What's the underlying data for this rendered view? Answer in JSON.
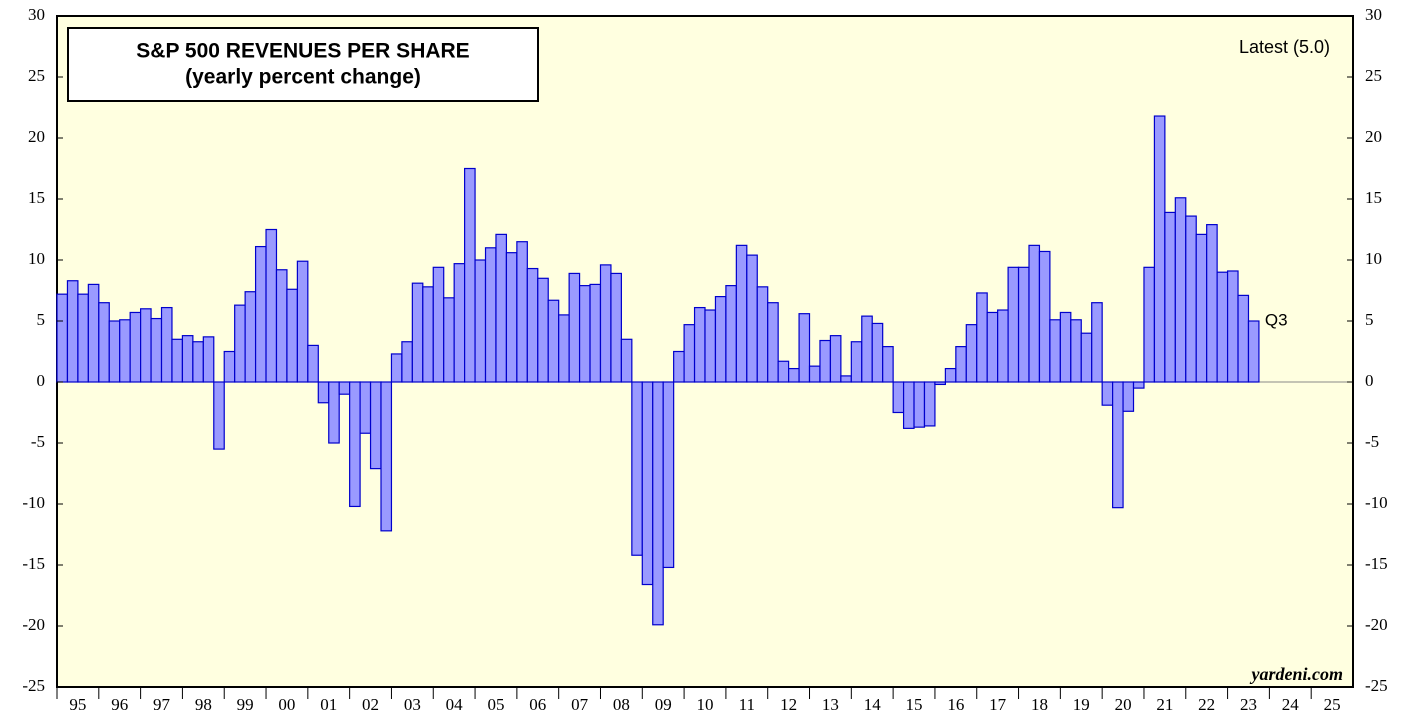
{
  "chart_data": {
    "type": "bar",
    "title": "S&P 500 REVENUES PER SHARE",
    "subtitle": "(yearly percent change)",
    "annotations": {
      "latest": "Latest (5.0)",
      "last_label": "Q3",
      "source": "yardeni.com"
    },
    "x_labels": [
      "95",
      "96",
      "97",
      "98",
      "99",
      "00",
      "01",
      "02",
      "03",
      "04",
      "05",
      "06",
      "07",
      "08",
      "09",
      "10",
      "11",
      "12",
      "13",
      "14",
      "15",
      "16",
      "17",
      "18",
      "19",
      "20",
      "21",
      "22",
      "23",
      "24",
      "25"
    ],
    "values": [
      7.2,
      8.3,
      7.2,
      8.0,
      6.5,
      5.0,
      5.1,
      5.7,
      6.0,
      5.2,
      6.1,
      3.5,
      3.8,
      3.3,
      3.7,
      -5.5,
      2.5,
      6.3,
      7.4,
      11.1,
      12.5,
      9.2,
      7.6,
      9.9,
      3.0,
      -1.7,
      -5.0,
      -1.0,
      -10.2,
      -4.2,
      -7.1,
      -12.2,
      2.3,
      3.3,
      8.1,
      7.8,
      9.4,
      6.9,
      9.7,
      17.5,
      10.0,
      11.0,
      12.1,
      10.6,
      11.5,
      9.3,
      8.5,
      6.7,
      5.5,
      8.9,
      7.9,
      8.0,
      9.6,
      8.9,
      3.5,
      -14.2,
      -16.6,
      -19.9,
      -15.2,
      2.5,
      4.7,
      6.1,
      5.9,
      7.0,
      7.9,
      11.2,
      10.4,
      7.8,
      6.5,
      1.7,
      1.1,
      5.6,
      1.3,
      3.4,
      3.8,
      0.5,
      3.3,
      5.4,
      4.8,
      2.9,
      -2.5,
      -3.8,
      -3.7,
      -3.6,
      -0.2,
      1.1,
      2.9,
      4.7,
      7.3,
      5.7,
      5.9,
      9.4,
      9.4,
      11.2,
      10.7,
      5.1,
      5.7,
      5.1,
      4.0,
      6.5,
      -1.9,
      -10.3,
      -2.4,
      -0.5,
      9.4,
      21.8,
      13.9,
      15.1,
      13.6,
      12.1,
      12.9,
      9.0,
      9.1,
      7.1,
      5.0
    ],
    "color": "#9a9aff",
    "edge_color": "#0000cc",
    "background": "#ffffe0",
    "ylim": [
      -25,
      30
    ],
    "yticks": [
      -25,
      -20,
      -15,
      -10,
      -5,
      0,
      5,
      10,
      15,
      20,
      25,
      30
    ],
    "y2lim": [
      -25,
      30
    ],
    "y2ticks": [
      -25,
      -20,
      -15,
      -10,
      -5,
      0,
      5,
      10,
      15,
      20,
      25,
      30
    ]
  }
}
